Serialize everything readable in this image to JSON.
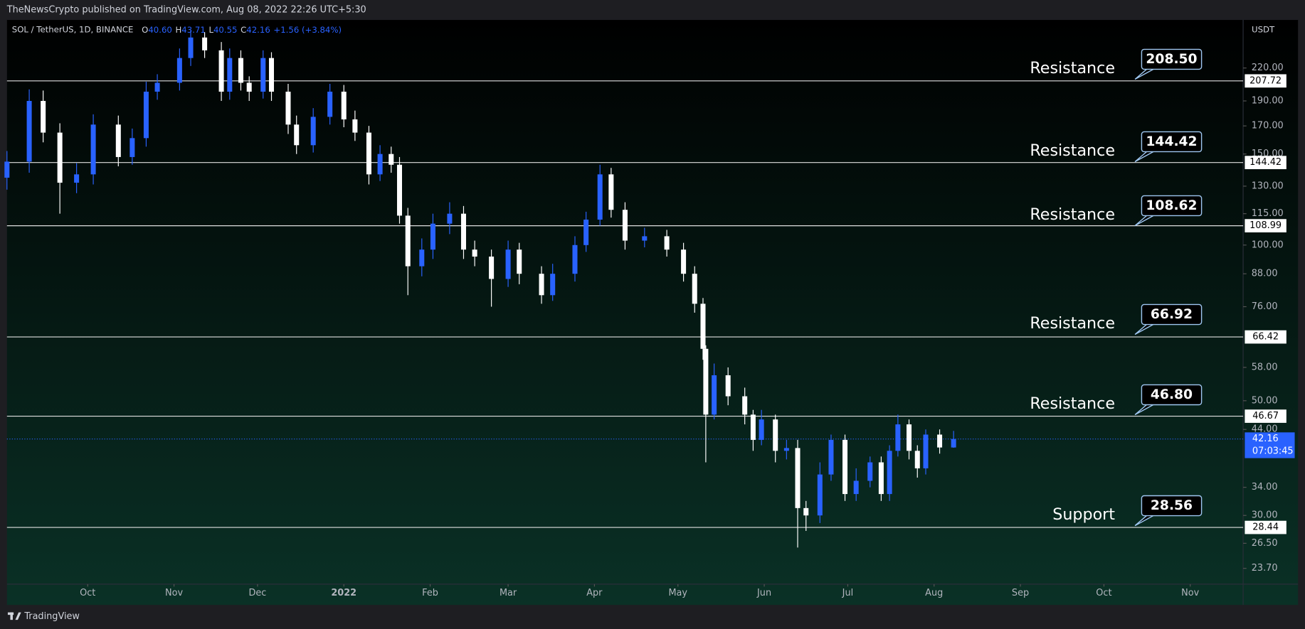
{
  "header": {
    "publisher": "TheNewsCrypto published on TradingView.com, Aug 08, 2022 22:26 UTC+5:30"
  },
  "footer": {
    "brand": "TradingView"
  },
  "chart_data": {
    "type": "candlestick",
    "symbol": "SOL / TetherUS, 1D, BINANCE",
    "ohlc_keys": [
      "O",
      "H",
      "L",
      "C"
    ],
    "ohlc_values": [
      {
        "value": 40.6,
        "label": "40.60"
      },
      43.71,
      40.55,
      42.16
    ],
    "change": "+1.56 (+3.84%)",
    "currency": "USDT",
    "log_scale": true,
    "up_color": "#2962ff",
    "down_color": "#ffffff",
    "xlim": [
      -121,
      323
    ],
    "xticks": [
      {
        "value": -92,
        "label": "Oct"
      },
      {
        "value": -61,
        "label": "Nov"
      },
      {
        "value": -31,
        "label": "Dec"
      },
      {
        "value": 0,
        "label": "2022"
      },
      {
        "value": 31,
        "label": "Feb"
      },
      {
        "value": 59,
        "label": "Mar"
      },
      {
        "value": 90,
        "label": "Apr"
      },
      {
        "value": 120,
        "label": "May"
      },
      {
        "value": 151,
        "label": "Jun"
      },
      {
        "value": 181,
        "label": "Jul"
      },
      {
        "value": 212,
        "label": "Aug"
      },
      {
        "value": 243,
        "label": "Sep"
      },
      {
        "value": 273,
        "label": "Oct"
      },
      {
        "value": 304,
        "label": "Nov"
      }
    ],
    "ylim": [
      22.34,
      271.5
    ],
    "yticks": [
      {
        "value": 220,
        "label": "220.00"
      },
      {
        "value": 190,
        "label": "190.00"
      },
      {
        "value": 170,
        "label": "170.00"
      },
      {
        "value": 150,
        "label": "150.00"
      },
      {
        "value": 130,
        "label": "130.00"
      },
      {
        "value": 115,
        "label": "115.00"
      },
      {
        "value": 100,
        "label": "100.00"
      },
      {
        "value": 88,
        "label": "88.00"
      },
      {
        "value": 76,
        "label": "76.00"
      },
      {
        "value": 58,
        "label": "58.00"
      },
      {
        "value": 50,
        "label": "50.00"
      },
      {
        "value": 44,
        "label": "44.00"
      },
      {
        "value": 34,
        "label": "34.00"
      },
      {
        "value": 30,
        "label": "30.00"
      },
      {
        "value": 26.5,
        "label": "26.50"
      },
      {
        "value": 23.7,
        "label": "23.70"
      }
    ],
    "x": [
      -121,
      -113,
      -108,
      -102,
      -96,
      -90,
      -81,
      -76,
      -71,
      -67,
      -59,
      -55,
      -50,
      -44,
      -41,
      -37,
      -34,
      -29,
      -26,
      -20,
      -17,
      -11,
      -5,
      0,
      4,
      9,
      13,
      17,
      20,
      23,
      28,
      32,
      38,
      43,
      47,
      53,
      59,
      63,
      71,
      75,
      83,
      87,
      92,
      96,
      101,
      108,
      116,
      122,
      126,
      129,
      130,
      133,
      138,
      144,
      147,
      150,
      155,
      159,
      163,
      166,
      171,
      175,
      180,
      184,
      189,
      193,
      196,
      199,
      203,
      206,
      209,
      214,
      219
    ],
    "open": [
      135,
      145,
      190,
      165,
      132,
      137,
      171,
      148,
      161,
      198,
      206,
      230,
      252,
      238,
      198,
      230,
      206,
      198,
      230,
      198,
      171,
      156,
      177,
      198,
      175,
      165,
      137,
      150,
      143,
      114,
      91,
      98,
      110,
      115,
      98,
      95,
      86,
      98,
      88,
      80,
      88,
      100,
      112,
      137,
      117,
      102,
      104,
      98,
      88,
      77,
      63,
      47,
      56,
      51,
      47,
      42,
      46,
      40,
      40.5,
      31,
      30,
      36,
      42,
      33,
      35,
      38,
      33,
      40,
      45,
      40,
      37,
      43,
      40.6
    ],
    "high": [
      152,
      200,
      199,
      172,
      144,
      179,
      178,
      168,
      207,
      214,
      240,
      260,
      258,
      247,
      240,
      238,
      212,
      238,
      236,
      205,
      178,
      184,
      205,
      204,
      182,
      170,
      156,
      155,
      148,
      118,
      103,
      115,
      121,
      119,
      102,
      98,
      102,
      101,
      91,
      92,
      104,
      116,
      143,
      141,
      121,
      108,
      107,
      101,
      91,
      79,
      64,
      59,
      58,
      53,
      48,
      48,
      47,
      42,
      42,
      32,
      38,
      43,
      43,
      37,
      39,
      39,
      41,
      47,
      46,
      41,
      44,
      44,
      43.71
    ],
    "low": [
      128,
      138,
      158,
      115,
      126,
      131,
      142,
      143,
      155,
      191,
      199,
      222,
      230,
      190,
      191,
      199,
      190,
      192,
      190,
      164,
      150,
      151,
      171,
      169,
      159,
      131,
      133,
      138,
      110,
      80,
      87,
      94,
      105,
      94,
      91,
      76,
      83,
      84,
      77,
      78,
      85,
      97,
      109,
      113,
      98,
      99,
      95,
      85,
      74,
      60,
      38,
      46,
      49,
      45,
      40,
      41,
      38,
      38.5,
      26,
      28,
      29,
      35,
      32,
      32,
      34,
      32,
      32,
      39,
      38.5,
      35.5,
      36,
      39.5,
      40.55
    ],
    "close": [
      145,
      190,
      165,
      132,
      137,
      171,
      148,
      161,
      198,
      206,
      230,
      252,
      238,
      198,
      230,
      206,
      198,
      230,
      198,
      171,
      156,
      177,
      198,
      175,
      165,
      137,
      150,
      143,
      114,
      91,
      98,
      110,
      115,
      98,
      95,
      86,
      98,
      88,
      80,
      88,
      100,
      112,
      137,
      117,
      102,
      104,
      98,
      88,
      77,
      63,
      47,
      56,
      51,
      47,
      42,
      46,
      40,
      40.5,
      31,
      30,
      36,
      42,
      33,
      35,
      38,
      33,
      40,
      45,
      40,
      37,
      43,
      40.6,
      42.16
    ],
    "levels": [
      207.72,
      144.42,
      108.99,
      66.42,
      46.67,
      28.44
    ],
    "annotations": [
      {
        "text": "Resistance",
        "value": 208.5,
        "label": "208.50"
      },
      {
        "text": "Resistance",
        "value": 144.42,
        "label": "144.42"
      },
      {
        "text": "Resistance",
        "value": 108.62,
        "label": "108.62"
      },
      {
        "text": "Resistance",
        "value": 66.92,
        "label": "66.92"
      },
      {
        "text": "Resistance",
        "value": 46.8,
        "label": "46.80"
      },
      {
        "text": "Support",
        "value": 28.56,
        "label": "28.56"
      }
    ],
    "last_price": 42.16,
    "countdown": "07:03:45"
  }
}
